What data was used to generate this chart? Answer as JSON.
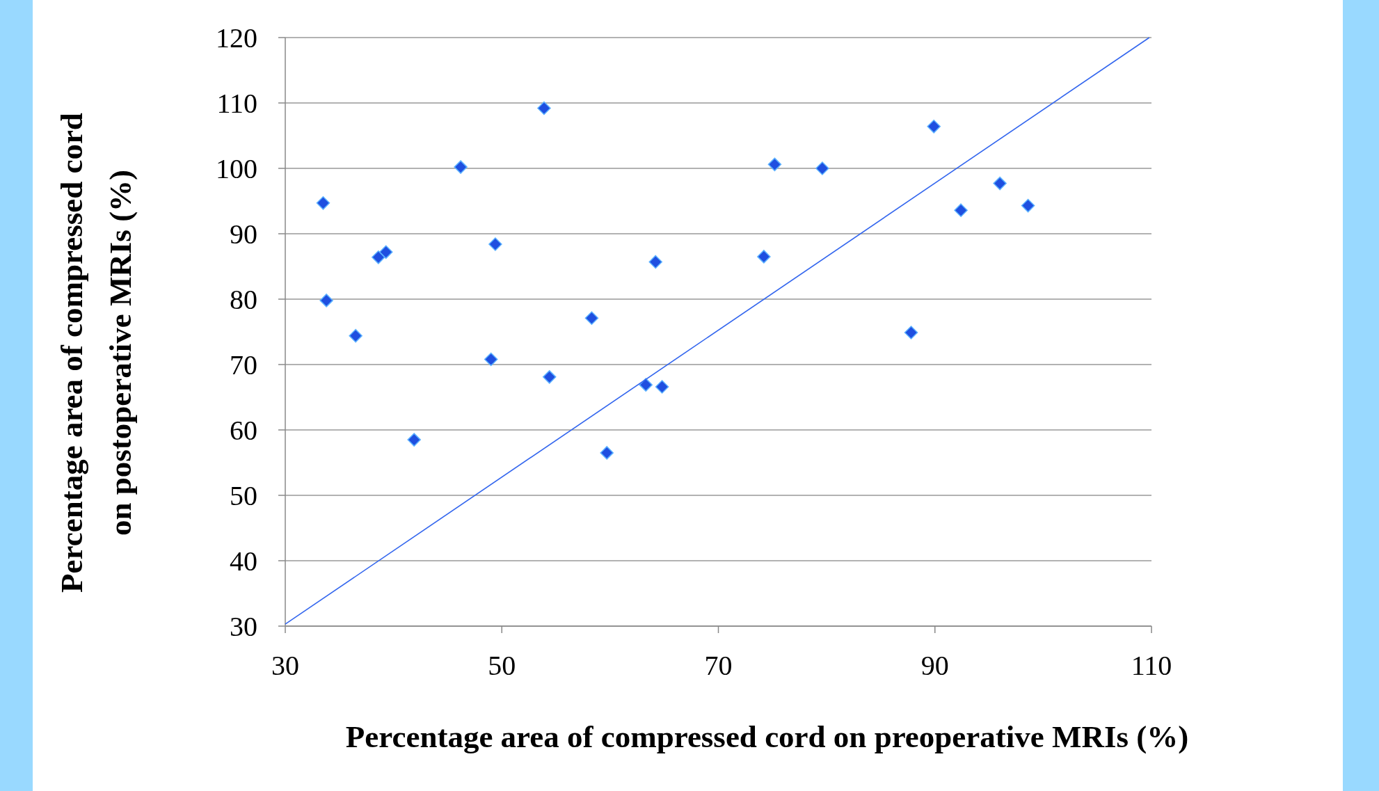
{
  "chart_data": {
    "type": "scatter",
    "xlabel": "Percentage area of compressed cord on preoperative MRIs (%)",
    "ylabel": "Percentage area of compressed cord on postoperative MRIs (%)",
    "xlim": [
      30,
      110
    ],
    "xticks": [
      30,
      50,
      70,
      90,
      110
    ],
    "ylim": [
      30,
      120
    ],
    "yticks": [
      30,
      40,
      50,
      60,
      70,
      80,
      90,
      100,
      110,
      120
    ],
    "grid": "y",
    "marker": "diamond",
    "series": [
      {
        "color": "#1f4fe0",
        "x": [
          33.5,
          33.8,
          36.5,
          38.6,
          39.3,
          41.9,
          46.2,
          49.0,
          49.4,
          53.9,
          54.4,
          58.3,
          59.7,
          63.3,
          64.2,
          64.8,
          74.2,
          75.2,
          79.6,
          87.8,
          89.9,
          92.4,
          96.0,
          98.6
        ],
        "values": [
          94.7,
          79.8,
          74.4,
          86.4,
          87.2,
          58.5,
          100.2,
          70.8,
          88.4,
          109.2,
          68.1,
          77.1,
          56.5,
          66.9,
          85.7,
          66.6,
          86.5,
          100.6,
          100.0,
          74.9,
          106.4,
          93.6,
          97.7,
          94.3
        ]
      },
      {
        "type": "line",
        "color": "#3366ee",
        "marker": "none",
        "x": [
          30,
          109.8
        ],
        "values": [
          30.3,
          120
        ]
      }
    ]
  }
}
